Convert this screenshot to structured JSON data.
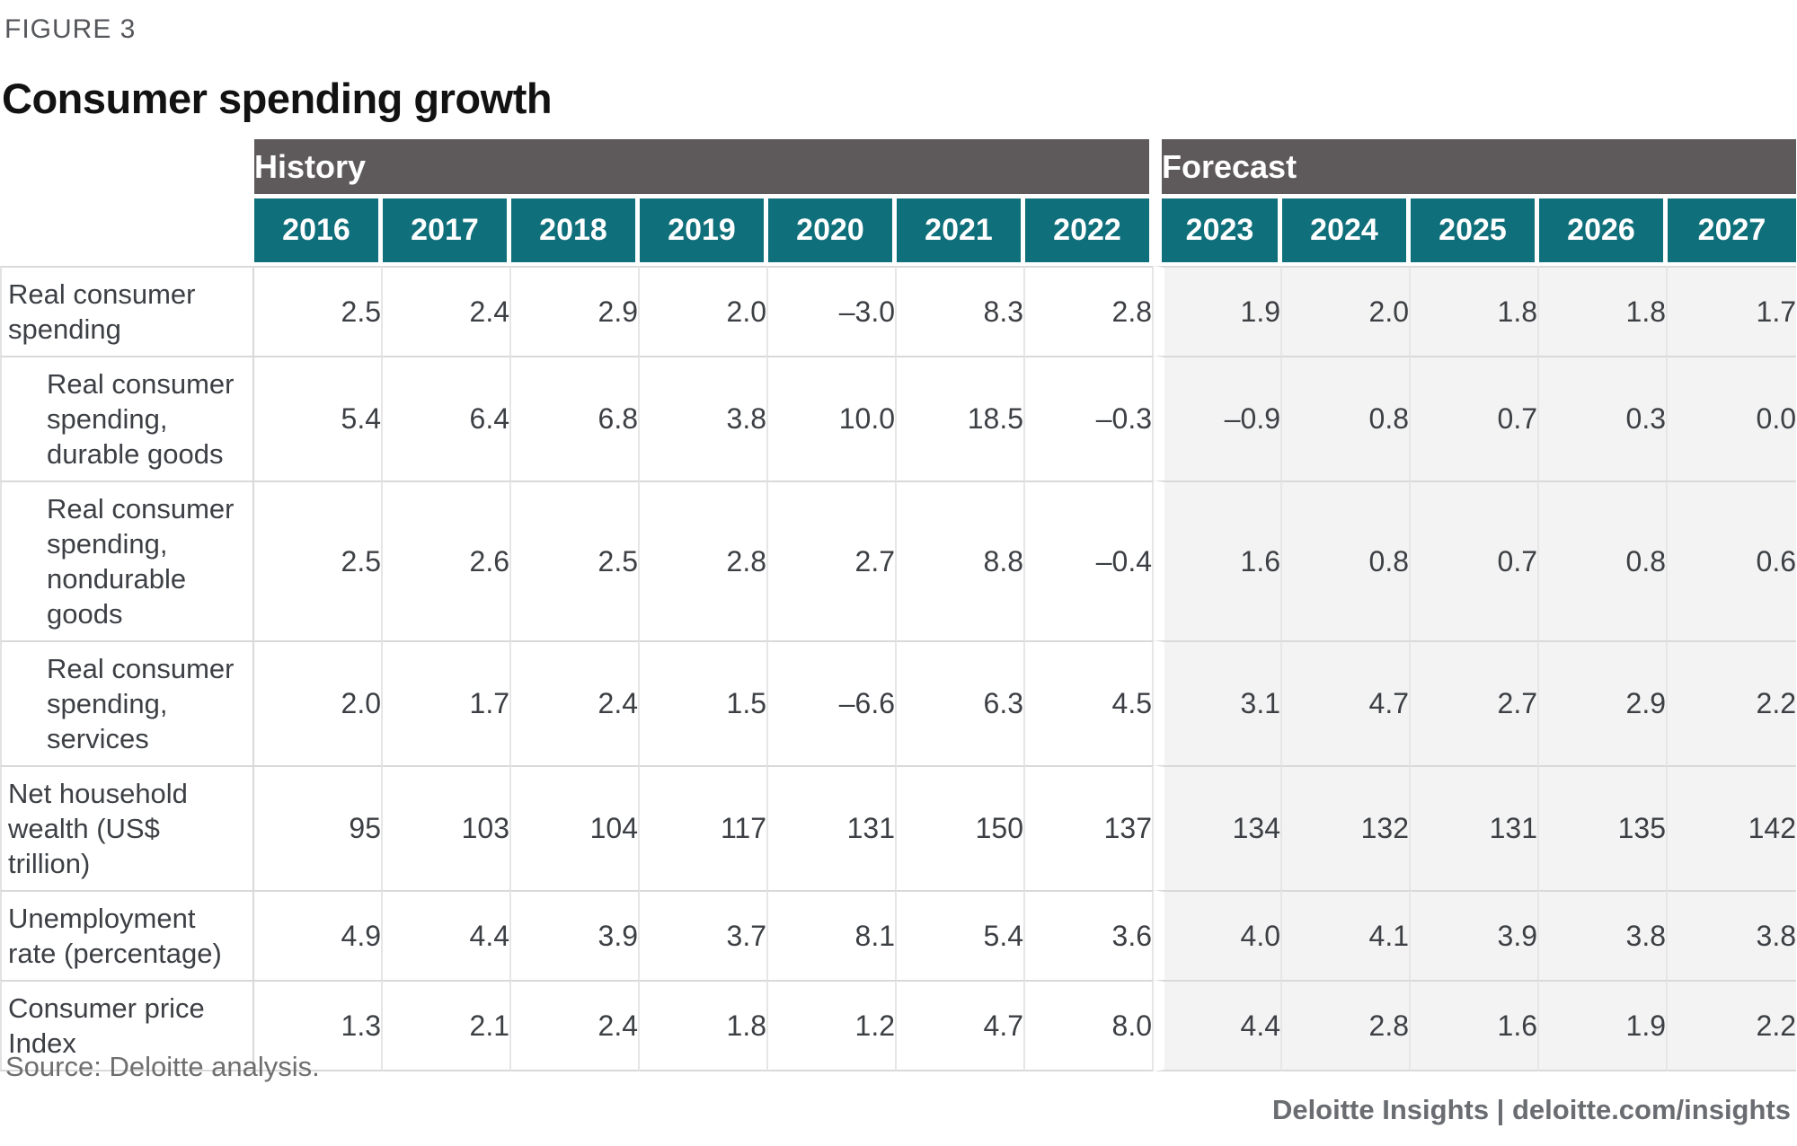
{
  "figure": {
    "label": "FIGURE 3",
    "title": "Consumer spending growth"
  },
  "table": {
    "sections": [
      {
        "label": "History",
        "years": [
          "2016",
          "2017",
          "2018",
          "2019",
          "2020",
          "2021",
          "2022"
        ]
      },
      {
        "label": "Forecast",
        "years": [
          "2023",
          "2024",
          "2025",
          "2026",
          "2027"
        ]
      }
    ],
    "rows": [
      {
        "label": "Real consumer spending",
        "indent": false,
        "values": [
          "2.5",
          "2.4",
          "2.9",
          "2.0",
          "–3.0",
          "8.3",
          "2.8",
          "1.9",
          "2.0",
          "1.8",
          "1.8",
          "1.7"
        ]
      },
      {
        "label": "Real consumer spending, durable goods",
        "indent": true,
        "values": [
          "5.4",
          "6.4",
          "6.8",
          "3.8",
          "10.0",
          "18.5",
          "–0.3",
          "–0.9",
          "0.8",
          "0.7",
          "0.3",
          "0.0"
        ]
      },
      {
        "label": "Real consumer spending, nondurable goods",
        "indent": true,
        "values": [
          "2.5",
          "2.6",
          "2.5",
          "2.8",
          "2.7",
          "8.8",
          "–0.4",
          "1.6",
          "0.8",
          "0.7",
          "0.8",
          "0.6"
        ]
      },
      {
        "label": "Real consumer spending, services",
        "indent": true,
        "values": [
          "2.0",
          "1.7",
          "2.4",
          "1.5",
          "–6.6",
          "6.3",
          "4.5",
          "3.1",
          "4.7",
          "2.7",
          "2.9",
          "2.2"
        ]
      },
      {
        "label": "Net household wealth (US$ trillion)",
        "indent": false,
        "values": [
          "95",
          "103",
          "104",
          "117",
          "131",
          "150",
          "137",
          "134",
          "132",
          "131",
          "135",
          "142"
        ]
      },
      {
        "label": "Unemployment rate (percentage)",
        "indent": false,
        "values": [
          "4.9",
          "4.4",
          "3.9",
          "3.7",
          "8.1",
          "5.4",
          "3.6",
          "4.0",
          "4.1",
          "3.9",
          "3.8",
          "3.8"
        ]
      },
      {
        "label": "Consumer price Index",
        "indent": false,
        "values": [
          "1.3",
          "2.1",
          "2.4",
          "1.8",
          "1.2",
          "4.7",
          "8.0",
          "4.4",
          "2.8",
          "1.6",
          "1.9",
          "2.2"
        ]
      }
    ]
  },
  "footer": {
    "source": "Source: Deloitte analysis.",
    "branding": "Deloitte Insights | deloitte.com/insights"
  },
  "colors": {
    "section_header_bg": "#5e5a5b",
    "year_header_bg": "#0f6f7a",
    "forecast_cell_bg": "#f3f3f3",
    "history_cell_bg": "#ffffff",
    "grid_line": "#d9d9d9",
    "text": "#3c3f44",
    "muted_text": "#6f6f6f"
  },
  "chart_data": {
    "type": "table",
    "title": "Consumer spending growth",
    "figure_label": "FIGURE 3",
    "categories": [
      "2016",
      "2017",
      "2018",
      "2019",
      "2020",
      "2021",
      "2022",
      "2023",
      "2024",
      "2025",
      "2026",
      "2027"
    ],
    "column_groups": [
      {
        "label": "History",
        "categories": [
          "2016",
          "2017",
          "2018",
          "2019",
          "2020",
          "2021",
          "2022"
        ]
      },
      {
        "label": "Forecast",
        "categories": [
          "2023",
          "2024",
          "2025",
          "2026",
          "2027"
        ]
      }
    ],
    "series": [
      {
        "name": "Real consumer spending",
        "values": [
          2.5,
          2.4,
          2.9,
          2.0,
          -3.0,
          8.3,
          2.8,
          1.9,
          2.0,
          1.8,
          1.8,
          1.7
        ]
      },
      {
        "name": "Real consumer spending, durable goods",
        "values": [
          5.4,
          6.4,
          6.8,
          3.8,
          10.0,
          18.5,
          -0.3,
          -0.9,
          0.8,
          0.7,
          0.3,
          0.0
        ]
      },
      {
        "name": "Real consumer spending, nondurable goods",
        "values": [
          2.5,
          2.6,
          2.5,
          2.8,
          2.7,
          8.8,
          -0.4,
          1.6,
          0.8,
          0.7,
          0.8,
          0.6
        ]
      },
      {
        "name": "Real consumer spending, services",
        "values": [
          2.0,
          1.7,
          2.4,
          1.5,
          -6.6,
          6.3,
          4.5,
          3.1,
          4.7,
          2.7,
          2.9,
          2.2
        ]
      },
      {
        "name": "Net household wealth (US$ trillion)",
        "values": [
          95,
          103,
          104,
          117,
          131,
          150,
          137,
          134,
          132,
          131,
          135,
          142
        ]
      },
      {
        "name": "Unemployment rate (percentage)",
        "values": [
          4.9,
          4.4,
          3.9,
          3.7,
          8.1,
          5.4,
          3.6,
          4.0,
          4.1,
          3.9,
          3.8,
          3.8
        ]
      },
      {
        "name": "Consumer price Index",
        "values": [
          1.3,
          2.1,
          2.4,
          1.8,
          1.2,
          4.7,
          8.0,
          4.4,
          2.8,
          1.6,
          1.9,
          2.2
        ]
      }
    ],
    "source": "Source: Deloitte analysis."
  }
}
